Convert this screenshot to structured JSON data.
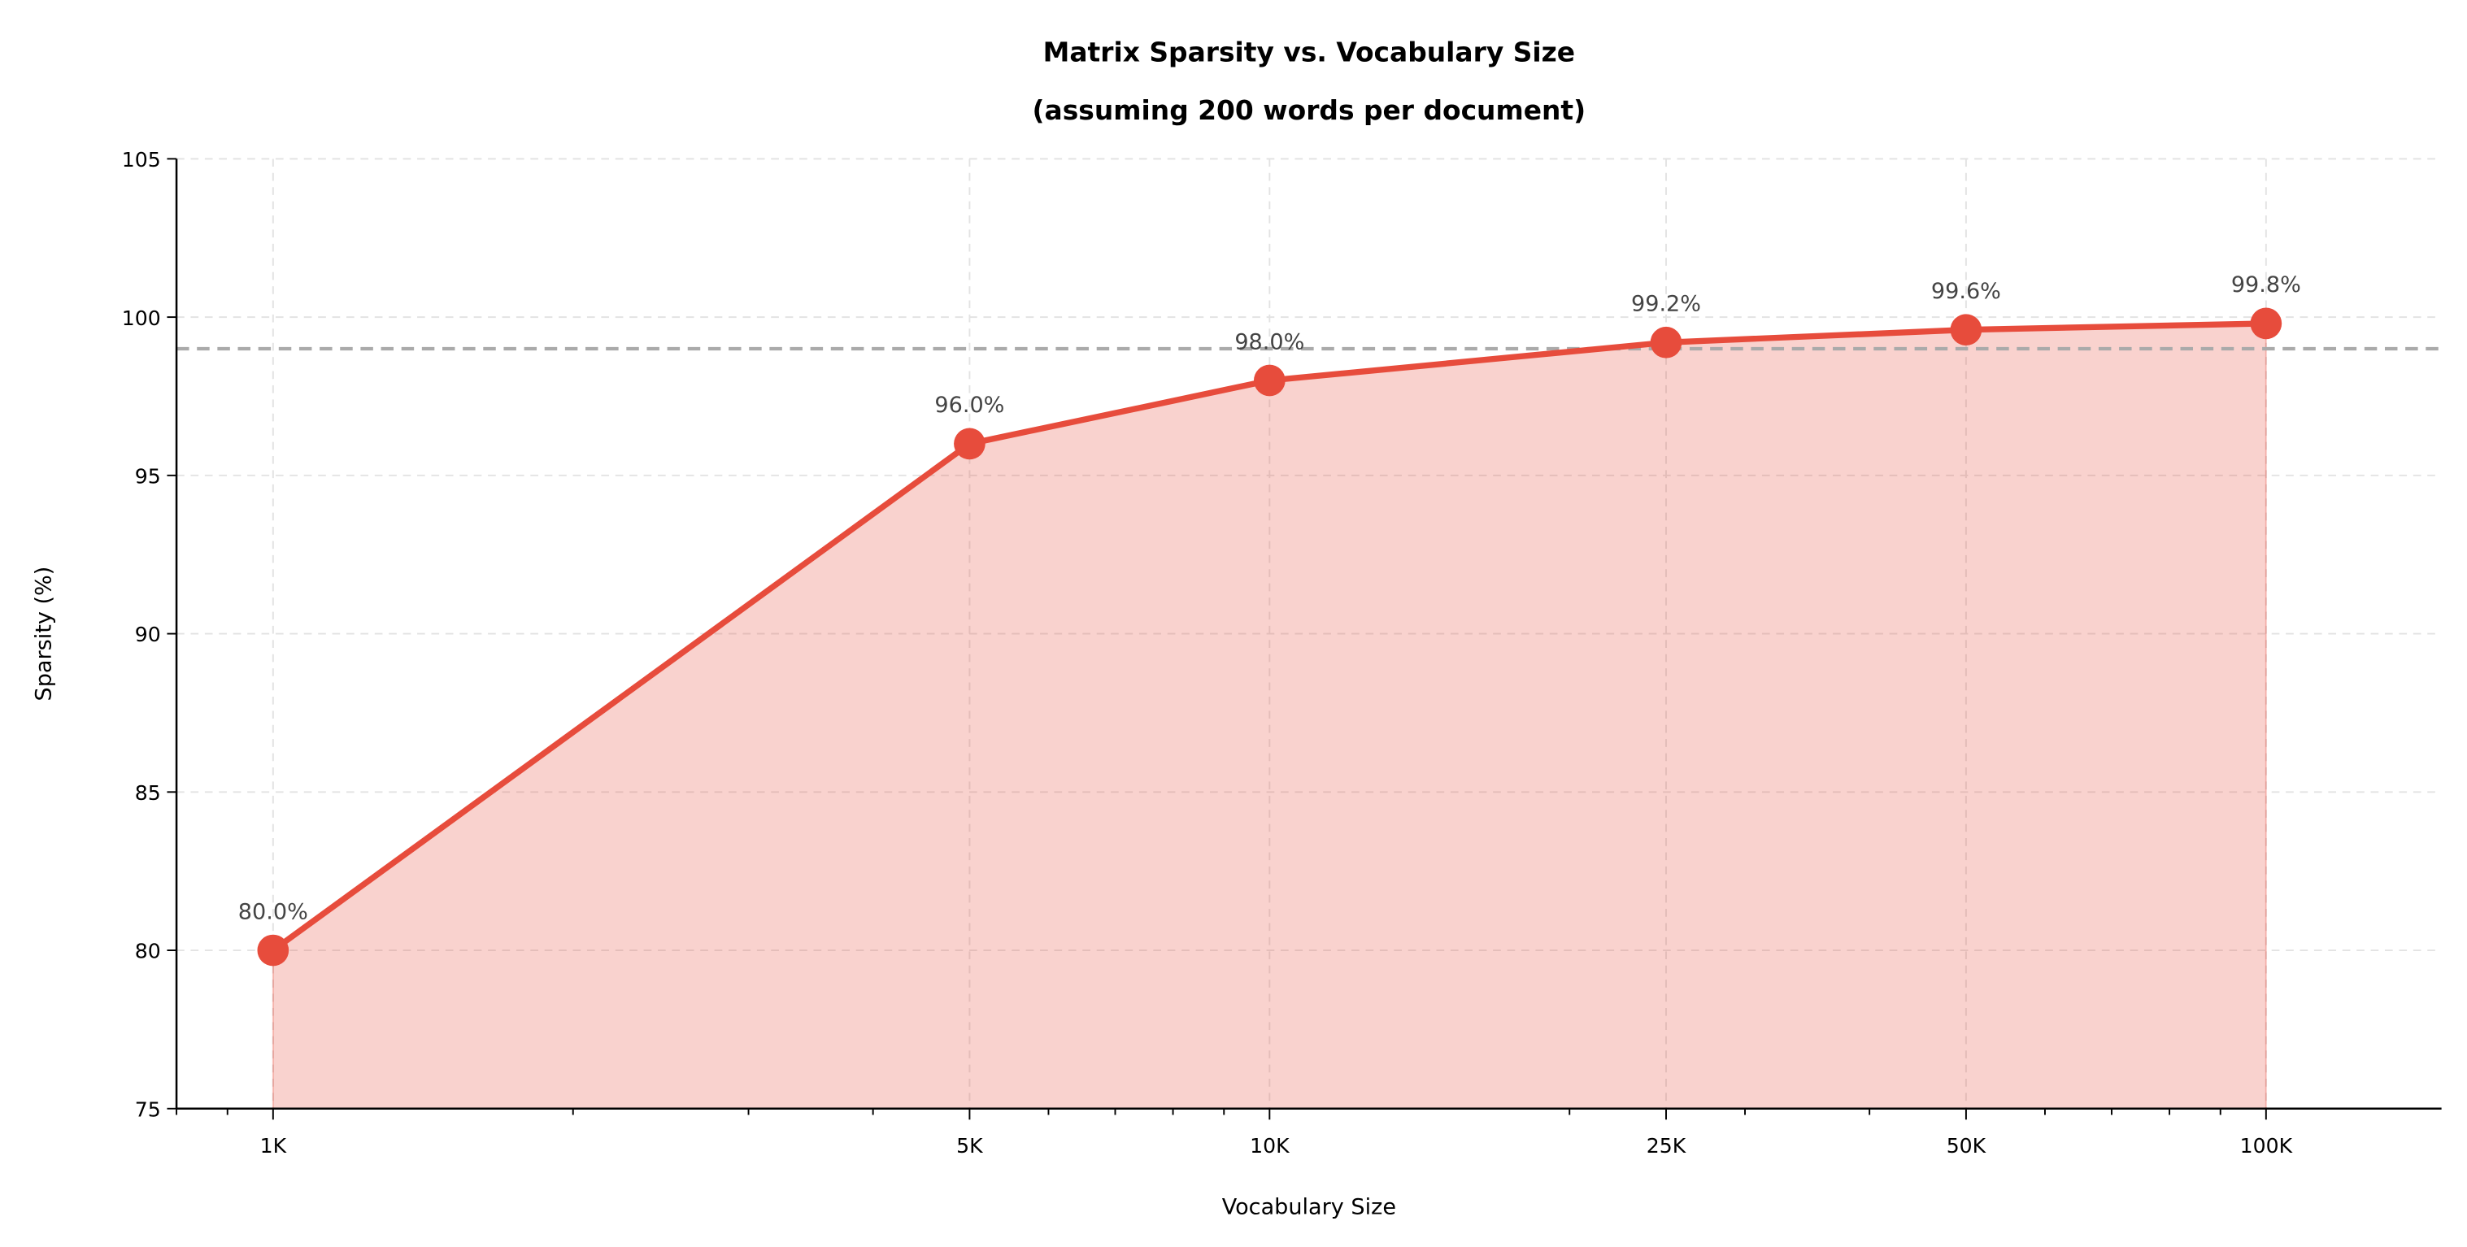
{
  "chart_data": {
    "type": "line",
    "title": "Matrix Sparsity vs. Vocabulary Size\n(assuming 200 words per document)",
    "title_lines": [
      "Matrix Sparsity vs. Vocabulary Size",
      "(assuming 200 words per document)"
    ],
    "xlabel": "Vocabulary Size",
    "ylabel": "Sparsity (%)",
    "x_scale": "log",
    "xlim": [
      800,
      150000
    ],
    "ylim": [
      75,
      105
    ],
    "x": [
      1000,
      5000,
      10000,
      25000,
      50000,
      100000
    ],
    "x_tick_labels": [
      "1K",
      "5K",
      "10K",
      "25K",
      "50K",
      "100K"
    ],
    "y_ticks": [
      75,
      80,
      85,
      90,
      95,
      100,
      105
    ],
    "series": [
      {
        "values": [
          80.0,
          96.0,
          98.0,
          99.2,
          99.6,
          99.8
        ],
        "data_labels": [
          "80.0%",
          "96.0%",
          "98.0%",
          "99.2%",
          "99.6%",
          "99.8%"
        ],
        "color": "#e74c3c",
        "fill": true,
        "markers": true
      }
    ],
    "reference_line": {
      "y": 99,
      "style": "dashed",
      "color": "#999999"
    },
    "grid": true,
    "grid_style": "dashed",
    "legend": "none"
  }
}
